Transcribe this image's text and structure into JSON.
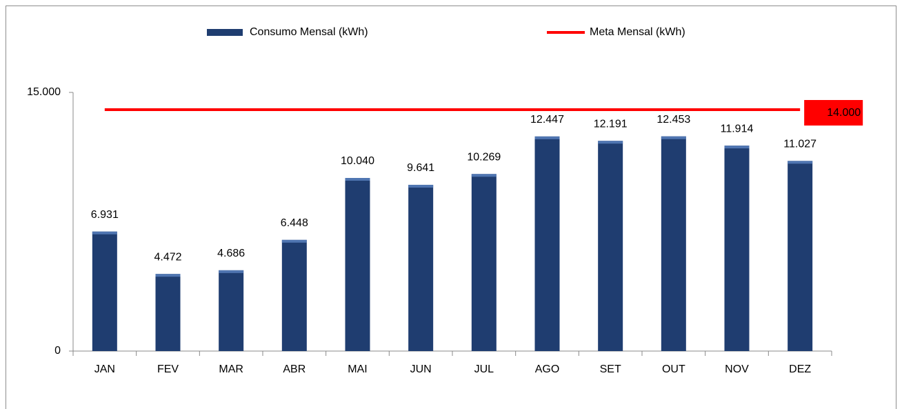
{
  "chart_data": {
    "type": "bar",
    "categories": [
      "JAN",
      "FEV",
      "MAR",
      "ABR",
      "MAI",
      "JUN",
      "JUL",
      "AGO",
      "SET",
      "OUT",
      "NOV",
      "DEZ"
    ],
    "series": [
      {
        "name": "Consumo Mensal (kWh)",
        "color": "#1f3d70",
        "values": [
          6931,
          4472,
          4686,
          6448,
          10040,
          9641,
          10269,
          12447,
          12191,
          12453,
          11914,
          11027
        ],
        "value_labels": [
          "6.931",
          "4.472",
          "4.686",
          "6.448",
          "10.040",
          "9.641",
          "10.269",
          "12.447",
          "12.191",
          "12.453",
          "11.914",
          "11.027"
        ]
      },
      {
        "name": "Meta Mensal (kWh)",
        "type": "line",
        "color": "#ff0000",
        "values": [
          14000,
          14000,
          14000,
          14000,
          14000,
          14000,
          14000,
          14000,
          14000,
          14000,
          14000,
          14000
        ],
        "value_labels": [
          null,
          null,
          null,
          null,
          null,
          null,
          null,
          null,
          null,
          null,
          null,
          "14.000"
        ]
      }
    ],
    "ylim": [
      0,
      15000
    ],
    "yticks": [
      0,
      {
        "value": 15000,
        "label": "15.000"
      }
    ],
    "legend": "top"
  }
}
